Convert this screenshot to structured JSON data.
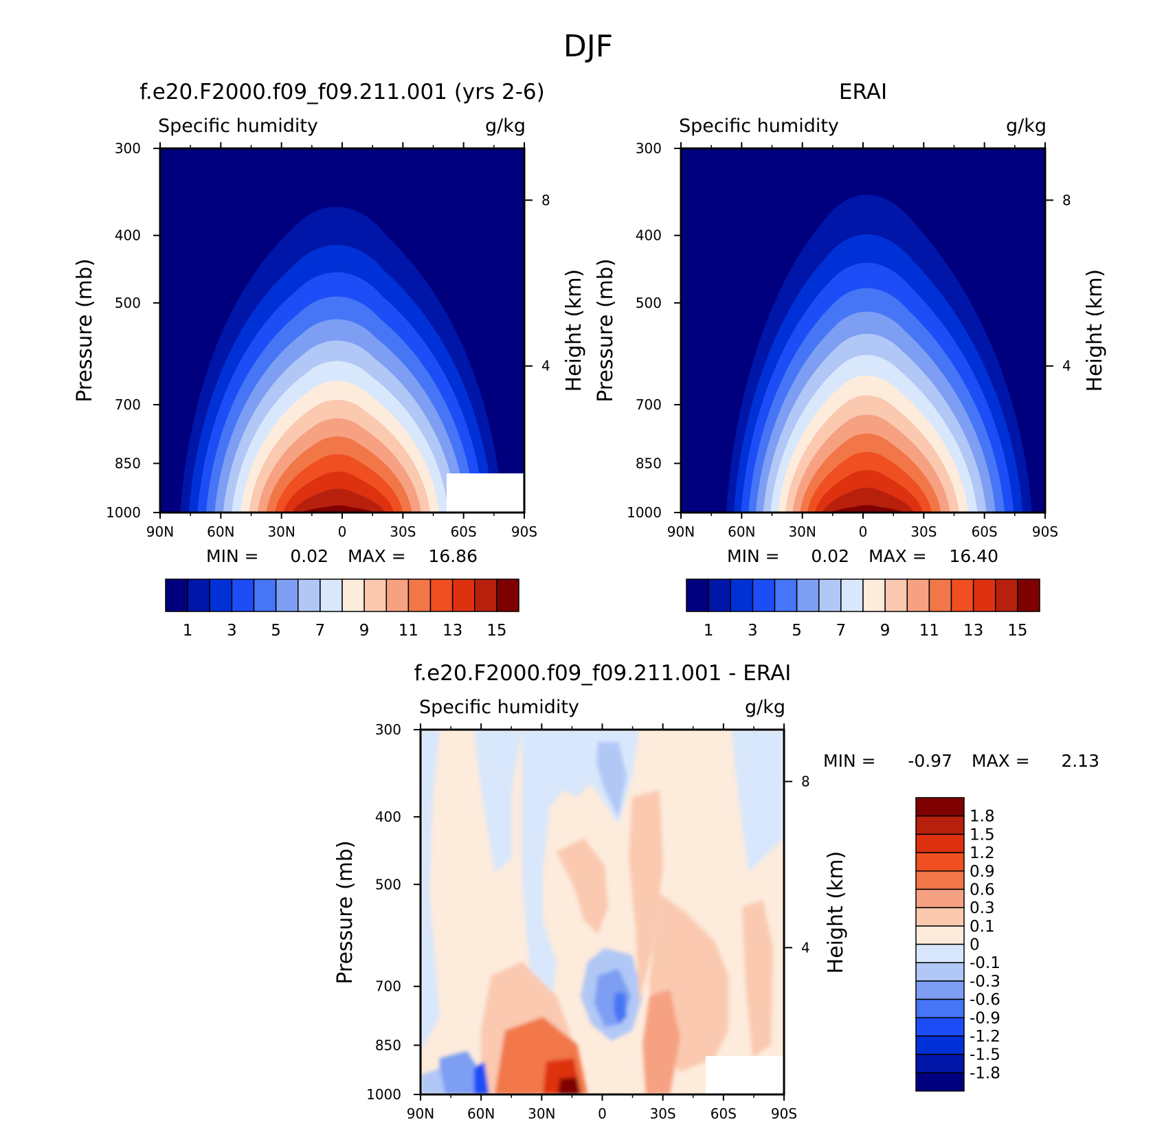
{
  "page_title": "DJF",
  "colors": {
    "abs_levels": [
      "#00007f",
      "#0016a8",
      "#0031d6",
      "#1c4df6",
      "#4676f5",
      "#7d9ef3",
      "#b1c7f6",
      "#d8e7fb",
      "#fdebdc",
      "#fac9b0",
      "#f6a182",
      "#f27748",
      "#ef4f21",
      "#de3110",
      "#b8200e",
      "#7f0000"
    ],
    "diff_levels": [
      "#00007f",
      "#0016a8",
      "#0031d6",
      "#1c4df6",
      "#4676f5",
      "#7d9ef3",
      "#b1c7f6",
      "#d8e7fb",
      "#fdebdc",
      "#fac9b0",
      "#f6a182",
      "#f27748",
      "#ef4f21",
      "#de3110",
      "#b8200e",
      "#7f0000"
    ]
  },
  "panel_left": {
    "title": "f.e20.F2000.f09_f09.211.001 (yrs 2-6)",
    "subtitle_left": "Specific humidity",
    "subtitle_right": "g/kg",
    "ylabel": "Pressure (mb)",
    "ylabel_right": "Height (km)",
    "min_label": "MIN =",
    "min_value": "0.02",
    "max_label": "MAX =",
    "max_value": "16.86"
  },
  "panel_right": {
    "title": "ERAI",
    "subtitle_left": "Specific humidity",
    "subtitle_right": "g/kg",
    "ylabel": "Pressure (mb)",
    "ylabel_right": "Height (km)",
    "min_label": "MIN =",
    "min_value": "0.02",
    "max_label": "MAX =",
    "max_value": "16.40"
  },
  "panel_diff": {
    "title": "f.e20.F2000.f09_f09.211.001 - ERAI",
    "subtitle_left": "Specific humidity",
    "subtitle_right": "g/kg",
    "ylabel": "Pressure (mb)",
    "ylabel_right": "Height (km)",
    "min_label": "MIN =",
    "min_value": "-0.97",
    "max_label": "MAX =",
    "max_value": "2.13"
  },
  "axes": {
    "x_ticks": [
      "90N",
      "60N",
      "30N",
      "0",
      "30S",
      "60S",
      "90S"
    ],
    "y_ticks": [
      "300",
      "400",
      "500",
      "700",
      "850",
      "1000"
    ],
    "height_ticks": [
      "8",
      "4"
    ]
  },
  "colorbar_abs_labels": [
    "1",
    "3",
    "5",
    "7",
    "9",
    "11",
    "13",
    "15"
  ],
  "colorbar_diff_labels": [
    "1.8",
    "1.5",
    "1.2",
    "0.9",
    "0.6",
    "0.3",
    "0.1",
    "0",
    "-0.1",
    "-0.3",
    "-0.6",
    "-0.9",
    "-1.2",
    "-1.5",
    "-1.8"
  ],
  "chart_data": [
    {
      "type": "heatmap",
      "title": "f.e20.F2000.f09_f09.211.001 (yrs 2-6)",
      "subtitle": "Specific humidity",
      "units": "g/kg",
      "xlabel": "",
      "ylabel": "Pressure (mb)",
      "ylabel_right": "Height (km)",
      "x_ticks": [
        "90N",
        "60N",
        "30N",
        "0",
        "30S",
        "60S",
        "90S"
      ],
      "xlim": [
        90,
        -90
      ],
      "y_ticks": [
        300,
        400,
        500,
        700,
        850,
        1000
      ],
      "ylim": [
        1000,
        300
      ],
      "y_scale": "log",
      "min": 0.02,
      "max": 16.86,
      "peak_latitude": 0,
      "peak_pressure": 1000
    },
    {
      "type": "heatmap",
      "title": "ERAI",
      "subtitle": "Specific humidity",
      "units": "g/kg",
      "xlabel": "",
      "ylabel": "Pressure (mb)",
      "ylabel_right": "Height (km)",
      "x_ticks": [
        "90N",
        "60N",
        "30N",
        "0",
        "30S",
        "60S",
        "90S"
      ],
      "xlim": [
        90,
        -90
      ],
      "y_ticks": [
        300,
        400,
        500,
        700,
        850,
        1000
      ],
      "ylim": [
        1000,
        300
      ],
      "y_scale": "log",
      "min": 0.02,
      "max": 16.4,
      "peak_latitude": 0,
      "peak_pressure": 1000
    },
    {
      "type": "heatmap",
      "title": "f.e20.F2000.f09_f09.211.001 - ERAI",
      "subtitle": "Specific humidity",
      "units": "g/kg",
      "xlabel": "",
      "ylabel": "Pressure (mb)",
      "ylabel_right": "Height (km)",
      "x_ticks": [
        "90N",
        "60N",
        "30N",
        "0",
        "30S",
        "60S",
        "90S"
      ],
      "xlim": [
        90,
        -90
      ],
      "y_ticks": [
        300,
        400,
        500,
        700,
        850,
        1000
      ],
      "ylim": [
        1000,
        300
      ],
      "y_scale": "log",
      "min": -0.97,
      "max": 2.13,
      "contour_levels": [
        -1.8,
        -1.5,
        -1.2,
        -0.9,
        -0.6,
        -0.3,
        -0.1,
        0,
        0.1,
        0.3,
        0.6,
        0.9,
        1.2,
        1.5,
        1.8
      ]
    }
  ]
}
